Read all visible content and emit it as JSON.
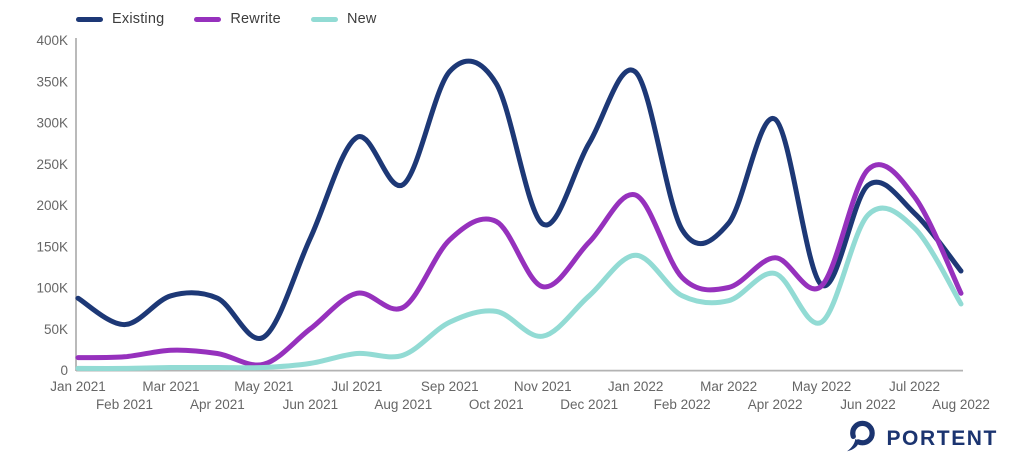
{
  "chart_data": {
    "type": "line",
    "title": "",
    "xlabel": "",
    "ylabel": "",
    "ylim": [
      0,
      400000
    ],
    "grid": false,
    "legend_position": "top-left",
    "categories": [
      "Jan 2021",
      "Feb 2021",
      "Mar 2021",
      "Apr 2021",
      "May 2021",
      "Jun 2021",
      "Jul 2021",
      "Aug 2021",
      "Sep 2021",
      "Oct 2021",
      "Nov 2021",
      "Dec 2021",
      "Jan 2022",
      "Feb 2022",
      "Mar 2022",
      "Apr 2022",
      "May 2022",
      "Jun 2022",
      "Jul 2022",
      "Aug 2022"
    ],
    "yticks": [
      {
        "value": 0,
        "label": "0"
      },
      {
        "value": 50000,
        "label": "50K"
      },
      {
        "value": 100000,
        "label": "100K"
      },
      {
        "value": 150000,
        "label": "150K"
      },
      {
        "value": 200000,
        "label": "200K"
      },
      {
        "value": 250000,
        "label": "250K"
      },
      {
        "value": 300000,
        "label": "300K"
      },
      {
        "value": 350000,
        "label": "350K"
      },
      {
        "value": 400000,
        "label": "400K"
      }
    ],
    "series": [
      {
        "name": "Existing",
        "color": "#1d3876",
        "values": [
          87000,
          55000,
          90000,
          87000,
          40000,
          160000,
          282000,
          225000,
          362000,
          347000,
          177000,
          275000,
          361000,
          170000,
          178000,
          304000,
          103000,
          224000,
          190000,
          120000
        ]
      },
      {
        "name": "Rewrite",
        "color": "#9631bd",
        "values": [
          15000,
          16000,
          24000,
          20000,
          7000,
          50000,
          93000,
          76000,
          158000,
          180000,
          101000,
          155000,
          212000,
          112000,
          100000,
          136000,
          102000,
          243000,
          210000,
          93000
        ]
      },
      {
        "name": "New",
        "color": "#92dbd4",
        "values": [
          2000,
          2000,
          3000,
          3000,
          3000,
          8000,
          20000,
          18000,
          58000,
          71000,
          41000,
          90000,
          139000,
          90000,
          84000,
          117000,
          58000,
          188000,
          172000,
          80000
        ]
      }
    ],
    "colors": {
      "axis_line": "#b3b3b3",
      "tick_text": "#666666",
      "legend_text": "#3d3d3d"
    }
  },
  "branding": {
    "logo_text": "PORTENT",
    "logo_color": "#1b3470"
  }
}
